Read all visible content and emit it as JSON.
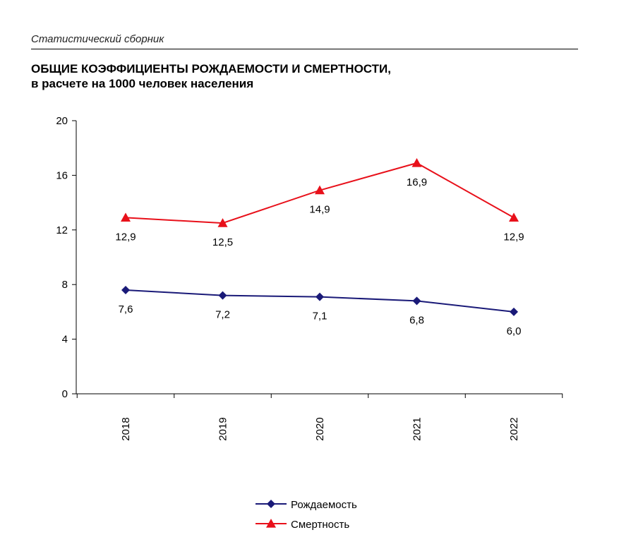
{
  "header": {
    "text": "Статистический сборник"
  },
  "chart_data": {
    "type": "line",
    "title": "ОБЩИЕ КОЭФФИЦИЕНТЫ РОЖДАЕМОСТИ И СМЕРТНОСТИ,",
    "subtitle": "в расчете на 1000 человек населения",
    "categories": [
      "2018",
      "2019",
      "2020",
      "2021",
      "2022"
    ],
    "ylim": [
      0,
      20
    ],
    "yticks": [
      0,
      4,
      8,
      12,
      16,
      20
    ],
    "grid": false,
    "legend_position": "bottom",
    "series": [
      {
        "name": "Рождаемость",
        "values": [
          7.6,
          7.2,
          7.1,
          6.8,
          6.0
        ],
        "labels": [
          "7,6",
          "7,2",
          "7,1",
          "6,8",
          "6,0"
        ],
        "color": "#1a1a78",
        "marker": "diamond"
      },
      {
        "name": "Смертность",
        "values": [
          12.9,
          12.5,
          14.9,
          16.9,
          12.9
        ],
        "labels": [
          "12,9",
          "12,5",
          "14,9",
          "16,9",
          "12,9"
        ],
        "color": "#e8101a",
        "marker": "triangle"
      }
    ]
  }
}
